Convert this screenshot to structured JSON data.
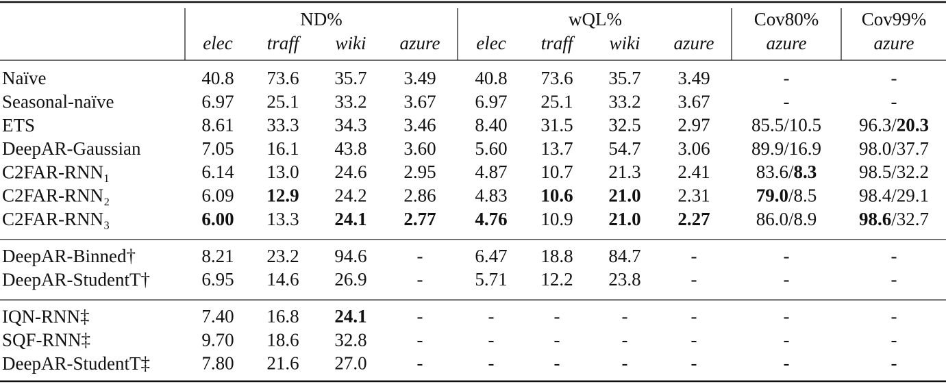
{
  "header": {
    "groups": [
      "ND%",
      "wQL%",
      "Cov80%",
      "Cov99%"
    ],
    "columns": [
      "elec",
      "traff",
      "wiki",
      "azure",
      "elec",
      "traff",
      "wiki",
      "azure",
      "azure",
      "azure"
    ]
  },
  "sections": [
    {
      "rows": [
        {
          "label": "Naïve",
          "cells": [
            "40.8",
            "73.6",
            "35.7",
            "3.49",
            "40.8",
            "73.6",
            "35.7",
            "3.49",
            "-",
            "-"
          ]
        },
        {
          "label": "Seasonal-naïve",
          "cells": [
            "6.97",
            "25.1",
            "33.2",
            "3.67",
            "6.97",
            "25.1",
            "33.2",
            "3.67",
            "-",
            "-"
          ]
        },
        {
          "label": "ETS",
          "cells": [
            "8.61",
            "33.3",
            "34.3",
            "3.46",
            "8.40",
            "31.5",
            "32.5",
            "2.97",
            "85.5/10.5",
            [
              "96.3/",
              {
                "text": "20.3",
                "bold": true
              }
            ]
          ]
        },
        {
          "label": "DeepAR-Gaussian",
          "cells": [
            "7.05",
            "16.1",
            "43.8",
            "3.60",
            "5.60",
            "13.7",
            "54.7",
            "3.06",
            "89.9/16.9",
            "98.0/37.7"
          ]
        },
        {
          "label": "C2FAR-RNN₁",
          "cells": [
            "6.14",
            "13.0",
            "24.6",
            "2.95",
            "4.87",
            "10.7",
            "21.3",
            "2.41",
            [
              "83.6/",
              {
                "text": "8.3",
                "bold": true
              }
            ],
            "98.5/32.2"
          ]
        },
        {
          "label": "C2FAR-RNN₂",
          "cells": [
            "6.09",
            {
              "text": "12.9",
              "bold": true
            },
            "24.2",
            "2.86",
            "4.83",
            {
              "text": "10.6",
              "bold": true
            },
            {
              "text": "21.0",
              "bold": true
            },
            "2.31",
            [
              {
                "text": "79.0",
                "bold": true
              },
              "/8.5"
            ],
            "98.4/29.1"
          ]
        },
        {
          "label": "C2FAR-RNN₃",
          "cells": [
            {
              "text": "6.00",
              "bold": true
            },
            "13.3",
            {
              "text": "24.1",
              "bold": true
            },
            {
              "text": "2.77",
              "bold": true
            },
            {
              "text": "4.76",
              "bold": true
            },
            "10.9",
            {
              "text": "21.0",
              "bold": true
            },
            {
              "text": "2.27",
              "bold": true
            },
            "86.0/8.9",
            [
              {
                "text": "98.6",
                "bold": true
              },
              "/32.7"
            ]
          ]
        }
      ]
    },
    {
      "rows": [
        {
          "label": "DeepAR-Binned†",
          "cells": [
            "8.21",
            "23.2",
            "94.6",
            "-",
            "6.47",
            "18.8",
            "84.7",
            "-",
            "-",
            "-"
          ]
        },
        {
          "label": "DeepAR-StudentT†",
          "cells": [
            "6.95",
            "14.6",
            "26.9",
            "-",
            "5.71",
            "12.2",
            "23.8",
            "-",
            "-",
            "-"
          ]
        }
      ]
    },
    {
      "rows": [
        {
          "label": "IQN-RNN‡",
          "cells": [
            "7.40",
            "16.8",
            {
              "text": "24.1",
              "bold": true
            },
            "-",
            "-",
            "-",
            "-",
            "-",
            "-",
            "-"
          ]
        },
        {
          "label": "SQF-RNN‡",
          "cells": [
            "9.70",
            "18.6",
            "32.8",
            "-",
            "-",
            "-",
            "-",
            "-",
            "-",
            "-"
          ]
        },
        {
          "label": "DeepAR-StudentT‡",
          "cells": [
            "7.80",
            "21.6",
            "27.0",
            "-",
            "-",
            "-",
            "-",
            "-",
            "-",
            "-"
          ]
        }
      ]
    }
  ]
}
